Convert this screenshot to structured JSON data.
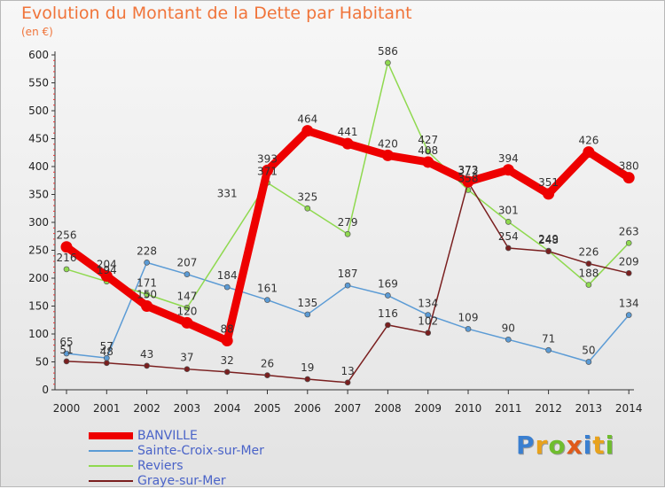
{
  "title": "Evolution du Montant de la Dette par Habitant",
  "unit": "(en €)",
  "logo": {
    "letters": [
      "P",
      "r",
      "o",
      "x",
      "i",
      "t",
      "i"
    ],
    "colors": [
      "#3a7fd0",
      "#e8a21c",
      "#6fbd2e",
      "#e05a1a",
      "#3a7fd0",
      "#e8a21c",
      "#6fbd2e"
    ]
  },
  "chart_data": {
    "type": "line",
    "x": [
      "2000",
      "2001",
      "2002",
      "2003",
      "2004",
      "2005",
      "2006",
      "2007",
      "2008",
      "2009",
      "2010",
      "2011",
      "2012",
      "2013",
      "2014"
    ],
    "ylim": [
      0,
      600
    ],
    "yticks": [
      "0",
      "50",
      "100",
      "150",
      "200",
      "250",
      "300",
      "350",
      "400",
      "450",
      "500",
      "550",
      "600"
    ],
    "grid": false,
    "legend_position": "bottom-left",
    "series": [
      {
        "name": "BANVILLE",
        "color": "#ee0000",
        "values": [
          256,
          204,
          150,
          120,
          88,
          393,
          464,
          441,
          420,
          408,
          373,
          394,
          351,
          426,
          380
        ]
      },
      {
        "name": "Sainte-Croix-sur-Mer",
        "color": "#5b9bd5",
        "values": [
          65,
          57,
          228,
          207,
          184,
          161,
          135,
          187,
          169,
          134,
          109,
          90,
          71,
          50,
          134
        ]
      },
      {
        "name": "Reviers",
        "color": "#8fd94f",
        "values": [
          216,
          194,
          171,
          147,
          null,
          371,
          325,
          279,
          586,
          427,
          358,
          301,
          249,
          188,
          263
        ]
      },
      {
        "name": "Graye-sur-Mer",
        "color": "#7a1f1f",
        "values": [
          51,
          48,
          43,
          37,
          32,
          26,
          19,
          13,
          116,
          102,
          372,
          254,
          248,
          226,
          209
        ]
      }
    ],
    "point_labels": [
      [
        "256",
        "204",
        "150",
        "120",
        "88",
        "393",
        "464",
        "441",
        "420",
        "408",
        "373",
        "394",
        "351",
        "426",
        "380"
      ],
      [
        "65",
        "57",
        "228",
        "207",
        "184",
        "161",
        "135",
        "187",
        "169",
        "134",
        "109",
        "90",
        "71",
        "50",
        "134"
      ],
      [
        "216",
        "194",
        "171",
        "147",
        "331",
        "371",
        "325",
        "279",
        "586",
        "427",
        "358",
        "301",
        "249",
        "188",
        "263"
      ],
      [
        "51",
        "48",
        "43",
        "37",
        "32",
        "26",
        "19",
        "13",
        "116",
        "102",
        "372",
        "254",
        "248",
        "226",
        "209"
      ]
    ]
  }
}
